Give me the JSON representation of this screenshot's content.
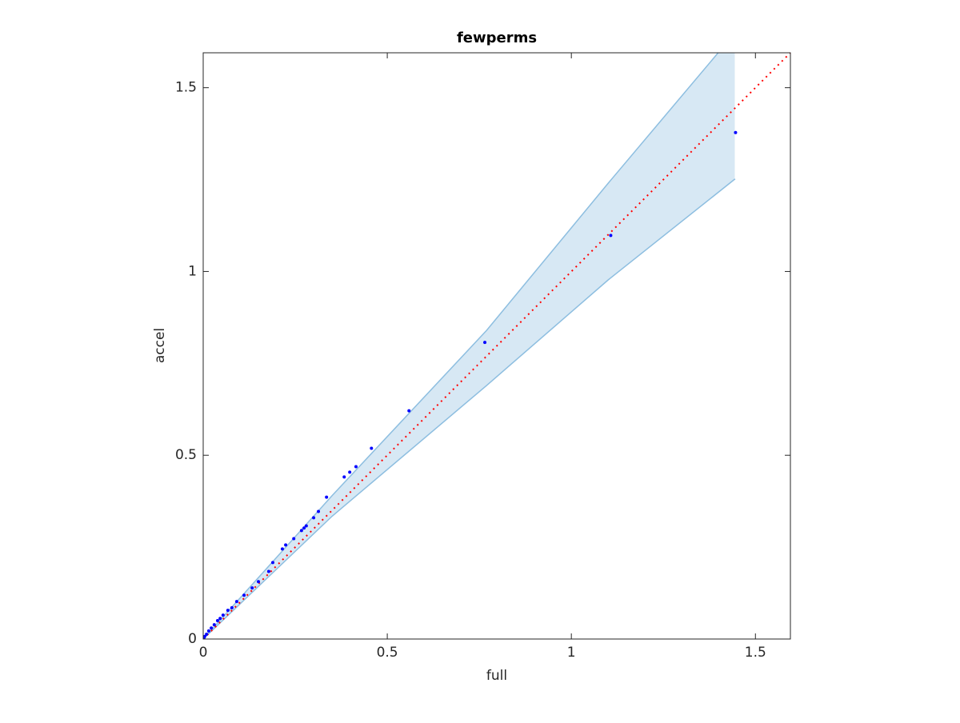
{
  "chart_data": {
    "type": "scatter",
    "title": "fewperms",
    "xlabel": "full",
    "ylabel": "accel",
    "x": [
      1.446,
      1.107,
      0.765,
      0.559,
      0.457,
      0.415,
      0.398,
      0.383,
      0.335,
      0.313,
      0.3,
      0.28,
      0.274,
      0.267,
      0.246,
      0.224,
      0.215,
      0.189,
      0.178,
      0.15,
      0.133,
      0.111,
      0.091,
      0.078,
      0.067,
      0.054,
      0.046,
      0.039,
      0.03,
      0.022,
      0.015,
      0.009,
      0.004,
      0.002
    ],
    "y": [
      1.378,
      1.098,
      0.807,
      0.621,
      0.519,
      0.469,
      0.454,
      0.441,
      0.386,
      0.347,
      0.33,
      0.308,
      0.302,
      0.295,
      0.273,
      0.256,
      0.245,
      0.208,
      0.184,
      0.156,
      0.139,
      0.119,
      0.102,
      0.085,
      0.078,
      0.065,
      0.056,
      0.05,
      0.039,
      0.03,
      0.022,
      0.013,
      0.007,
      0.003
    ],
    "color": "#0000ff",
    "band": {
      "x": [
        0,
        0.35,
        0.77,
        1.1,
        1.445
      ],
      "upper": [
        0,
        0.39,
        0.84,
        1.24,
        1.65
      ],
      "lower": [
        0,
        0.334,
        0.69,
        0.977,
        1.252
      ],
      "color": "#8dbee0"
    },
    "reference_line": {
      "x": [
        0,
        1.595
      ],
      "y": [
        0,
        1.595
      ],
      "color": "#ff0000"
    },
    "xlim": [
      0,
      1.595
    ],
    "ylim": [
      0,
      1.595
    ],
    "xticks": [
      0,
      0.5,
      1,
      1.5
    ],
    "yticks": [
      0,
      0.5,
      1,
      1.5
    ]
  }
}
